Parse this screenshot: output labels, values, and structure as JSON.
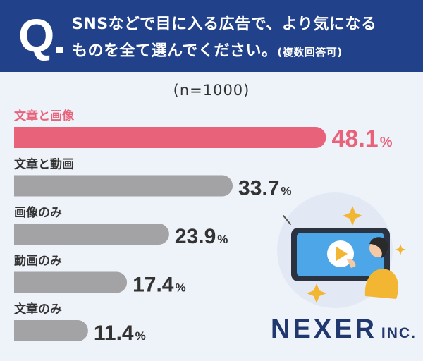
{
  "header": {
    "q_mark": "Q",
    "line1": "SNSなどで目に入る広告で、より気になる",
    "line2": "ものを全て選んでください。",
    "note": "(複数回答可)"
  },
  "sample_size": "(n=1000)",
  "brand": {
    "name": "NEXER",
    "suffix": "INC."
  },
  "colors": {
    "highlight": "#e8637a",
    "bar": "#a3a3a6",
    "header_bg": "#21418a",
    "brand": "#21386e"
  },
  "chart_data": {
    "type": "bar",
    "orientation": "horizontal",
    "title": "",
    "categories": [
      "文章と画像",
      "文章と動画",
      "画像のみ",
      "動画のみ",
      "文章のみ"
    ],
    "values": [
      48.1,
      33.7,
      23.9,
      17.4,
      11.4
    ],
    "unit": "%",
    "highlight_index": 0,
    "xlim": [
      0,
      60
    ]
  }
}
